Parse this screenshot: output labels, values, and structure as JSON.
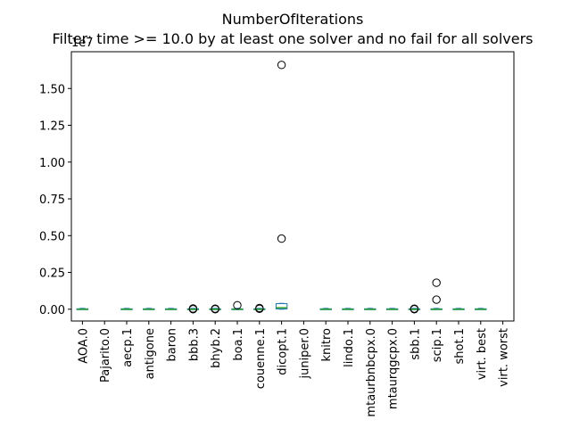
{
  "chart_data": {
    "type": "box",
    "title": "NumberOfIterations",
    "subtitle": "Filter: time >= 10.0 by at least one solver and no fail for all solvers",
    "y_offset_label": "1e7",
    "ylim": [
      -0.08,
      1.75
    ],
    "yticks": [
      "0.00",
      "0.25",
      "0.50",
      "0.75",
      "1.00",
      "1.25",
      "1.50"
    ],
    "ytick_values": [
      0,
      0.25,
      0.5,
      0.75,
      1.0,
      1.25,
      1.5
    ],
    "grid": false,
    "box_color": "#1f77b4",
    "median_color": "#2ca02c",
    "categories": [
      "AOA.0",
      "Pajarito.0",
      "aecp.1",
      "antigone",
      "baron",
      "bbb.3",
      "bhyb.2",
      "boa.1",
      "couenne.1",
      "dicopt.1",
      "juniper.0",
      "knitro",
      "lindo.1",
      "mtaurbnbcpx.0",
      "mtaurqgcpx.0",
      "sbb.1",
      "scip.1",
      "shot.1",
      "virt. best",
      "virt. worst"
    ],
    "boxes": [
      {
        "has_data": true,
        "q1": 0.0,
        "median": 0.0,
        "q3": 0.003,
        "whisker_low": 0.0,
        "whisker_high": 0.006,
        "outliers": []
      },
      {
        "has_data": false,
        "q1": 0,
        "median": 0,
        "q3": 0,
        "whisker_low": 0,
        "whisker_high": 0,
        "outliers": []
      },
      {
        "has_data": true,
        "q1": 0.0,
        "median": 0.0,
        "q3": 0.003,
        "whisker_low": 0.0,
        "whisker_high": 0.006,
        "outliers": []
      },
      {
        "has_data": true,
        "q1": 0.0,
        "median": 0.0,
        "q3": 0.003,
        "whisker_low": 0.0,
        "whisker_high": 0.006,
        "outliers": []
      },
      {
        "has_data": true,
        "q1": 0.0,
        "median": 0.0,
        "q3": 0.003,
        "whisker_low": 0.0,
        "whisker_high": 0.006,
        "outliers": []
      },
      {
        "has_data": true,
        "q1": 0.0,
        "median": 0.0,
        "q3": 0.003,
        "whisker_low": 0.0,
        "whisker_high": 0.006,
        "outliers": [
          0.0,
          0.005
        ]
      },
      {
        "has_data": true,
        "q1": 0.0,
        "median": 0.0,
        "q3": 0.003,
        "whisker_low": 0.0,
        "whisker_high": 0.006,
        "outliers": [
          0.0,
          0.004
        ]
      },
      {
        "has_data": true,
        "q1": 0.0,
        "median": 0.0,
        "q3": 0.003,
        "whisker_low": 0.0,
        "whisker_high": 0.006,
        "outliers": [
          0.027
        ]
      },
      {
        "has_data": true,
        "q1": 0.0,
        "median": 0.0,
        "q3": 0.003,
        "whisker_low": 0.0,
        "whisker_high": 0.006,
        "outliers": [
          0.003,
          0.008
        ]
      },
      {
        "has_data": true,
        "q1": 0.002,
        "median": 0.01,
        "q3": 0.038,
        "whisker_low": 0.0,
        "whisker_high": 0.04,
        "outliers": [
          0.48,
          1.66
        ]
      },
      {
        "has_data": false,
        "q1": 0,
        "median": 0,
        "q3": 0,
        "whisker_low": 0,
        "whisker_high": 0,
        "outliers": []
      },
      {
        "has_data": true,
        "q1": 0.0,
        "median": 0.0,
        "q3": 0.003,
        "whisker_low": 0.0,
        "whisker_high": 0.006,
        "outliers": []
      },
      {
        "has_data": true,
        "q1": 0.0,
        "median": 0.0,
        "q3": 0.003,
        "whisker_low": 0.0,
        "whisker_high": 0.006,
        "outliers": []
      },
      {
        "has_data": true,
        "q1": 0.0,
        "median": 0.0,
        "q3": 0.003,
        "whisker_low": 0.0,
        "whisker_high": 0.006,
        "outliers": []
      },
      {
        "has_data": true,
        "q1": 0.0,
        "median": 0.0,
        "q3": 0.003,
        "whisker_low": 0.0,
        "whisker_high": 0.006,
        "outliers": []
      },
      {
        "has_data": true,
        "q1": 0.0,
        "median": 0.0,
        "q3": 0.003,
        "whisker_low": 0.0,
        "whisker_high": 0.006,
        "outliers": [
          0.0,
          0.004
        ]
      },
      {
        "has_data": true,
        "q1": 0.0,
        "median": 0.0,
        "q3": 0.003,
        "whisker_low": 0.0,
        "whisker_high": 0.006,
        "outliers": [
          0.065,
          0.18
        ]
      },
      {
        "has_data": true,
        "q1": 0.0,
        "median": 0.0,
        "q3": 0.003,
        "whisker_low": 0.0,
        "whisker_high": 0.006,
        "outliers": []
      },
      {
        "has_data": true,
        "q1": 0.0,
        "median": 0.0,
        "q3": 0.003,
        "whisker_low": 0.0,
        "whisker_high": 0.006,
        "outliers": []
      },
      {
        "has_data": false,
        "q1": 0,
        "median": 0,
        "q3": 0,
        "whisker_low": 0,
        "whisker_high": 0,
        "outliers": []
      }
    ]
  }
}
